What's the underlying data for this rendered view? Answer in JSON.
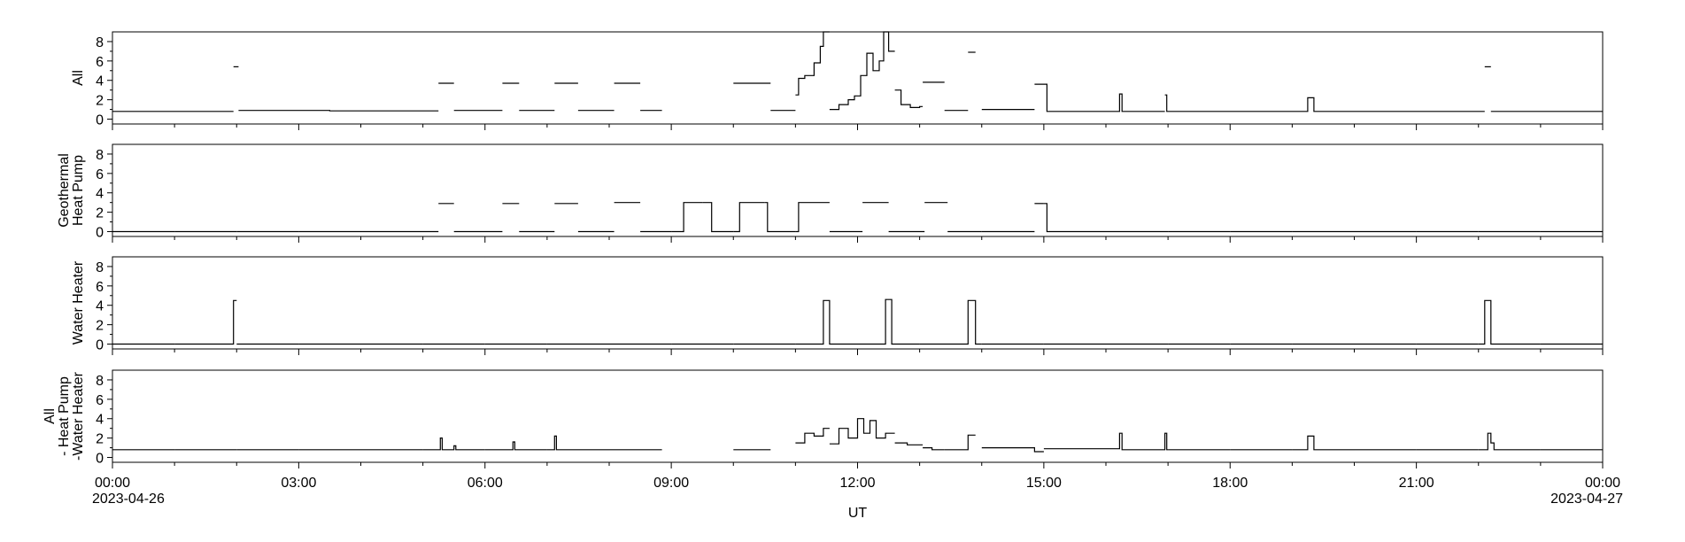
{
  "chart_data": {
    "type": "line",
    "xlabel": "UT",
    "x_start": "2023-04-26T00:00",
    "x_end": "2023-04-27T00:00",
    "x_ticks": [
      {
        "time": "00:00",
        "hour": 0,
        "date": "2023-04-26"
      },
      {
        "time": "03:00",
        "hour": 3,
        "date": ""
      },
      {
        "time": "06:00",
        "hour": 6,
        "date": ""
      },
      {
        "time": "09:00",
        "hour": 9,
        "date": ""
      },
      {
        "time": "12:00",
        "hour": 12,
        "date": ""
      },
      {
        "time": "15:00",
        "hour": 15,
        "date": ""
      },
      {
        "time": "18:00",
        "hour": 18,
        "date": ""
      },
      {
        "time": "21:00",
        "hour": 21,
        "date": ""
      },
      {
        "time": "00:00",
        "hour": 24,
        "date": "2023-04-27"
      }
    ],
    "ylim": [
      -0.5,
      9
    ],
    "y_ticks": [
      0,
      2,
      4,
      6,
      8
    ],
    "panels": [
      {
        "ylabel_lines": [
          "All"
        ],
        "baseline": 0.8,
        "segments": [
          [
            0,
            1.95
          ],
          [
            1.95,
            2.03
          ],
          [
            2.03,
            5.25
          ],
          [
            5.25,
            5.5
          ],
          [
            5.5,
            6.28
          ],
          [
            6.28,
            6.55
          ],
          [
            6.55,
            7.12
          ],
          [
            7.12,
            7.5
          ],
          [
            7.5,
            8.08
          ],
          [
            8.08,
            8.5
          ],
          [
            8.5,
            8.85
          ],
          [
            10.0,
            10.6
          ],
          [
            10.6,
            11.0
          ],
          [
            11.0,
            11.55
          ],
          [
            11.55,
            12.6
          ],
          [
            12.6,
            13.05
          ],
          [
            13.05,
            13.4
          ],
          [
            13.4,
            13.78
          ],
          [
            13.78,
            13.9
          ],
          [
            14.0,
            14.85
          ],
          [
            14.85,
            16.95
          ],
          [
            16.95,
            22.1
          ],
          [
            22.1,
            22.2
          ],
          [
            22.2,
            24
          ]
        ],
        "steps": [
          [
            0,
            0.8
          ],
          [
            1.95,
            5.4
          ],
          [
            2.03,
            0.9
          ],
          [
            3.5,
            0.85
          ],
          [
            5.25,
            3.7
          ],
          [
            5.5,
            0.9
          ],
          [
            6.28,
            3.7
          ],
          [
            6.55,
            0.9
          ],
          [
            7.12,
            3.7
          ],
          [
            7.5,
            0.9
          ],
          [
            8.08,
            3.7
          ],
          [
            8.5,
            0.9
          ],
          [
            10.0,
            3.7
          ],
          [
            10.6,
            0.9
          ],
          [
            11.0,
            2.5
          ],
          [
            11.05,
            4.2
          ],
          [
            11.15,
            4.5
          ],
          [
            11.3,
            5.8
          ],
          [
            11.4,
            7.5
          ],
          [
            11.45,
            9
          ],
          [
            11.55,
            1.0
          ],
          [
            11.7,
            1.5
          ],
          [
            11.85,
            2.0
          ],
          [
            11.95,
            2.4
          ],
          [
            12.05,
            4.5
          ],
          [
            12.15,
            6.8
          ],
          [
            12.25,
            5.0
          ],
          [
            12.35,
            6.0
          ],
          [
            12.42,
            9
          ],
          [
            12.5,
            7.0
          ],
          [
            12.6,
            3.0
          ],
          [
            12.7,
            1.5
          ],
          [
            12.85,
            1.2
          ],
          [
            13.0,
            1.3
          ],
          [
            13.05,
            3.8
          ],
          [
            13.4,
            0.9
          ],
          [
            13.78,
            6.9
          ],
          [
            14.0,
            1.0
          ],
          [
            14.85,
            3.6
          ],
          [
            15.05,
            0.8
          ],
          [
            16.22,
            2.6
          ],
          [
            16.26,
            0.8
          ],
          [
            16.95,
            2.5
          ],
          [
            16.98,
            0.8
          ],
          [
            19.25,
            2.2
          ],
          [
            19.35,
            0.8
          ],
          [
            22.1,
            5.4
          ],
          [
            22.2,
            0.8
          ]
        ]
      },
      {
        "ylabel_lines": [
          "Geothermal",
          "Heat Pump"
        ],
        "baseline": 0,
        "segments": [
          [
            0,
            1.0
          ],
          [
            1.0,
            2.0
          ],
          [
            2.0,
            3.0
          ],
          [
            3.0,
            4.0
          ],
          [
            4.0,
            5.25
          ],
          [
            5.25,
            5.5
          ],
          [
            5.5,
            6.28
          ],
          [
            6.28,
            6.55
          ],
          [
            6.55,
            7.12
          ],
          [
            7.12,
            7.5
          ],
          [
            7.5,
            8.08
          ],
          [
            8.08,
            8.5
          ],
          [
            8.5,
            9.0
          ],
          [
            9.0,
            9.5
          ],
          [
            9.5,
            10.0
          ],
          [
            10.0,
            10.5
          ],
          [
            10.5,
            11.0
          ],
          [
            11.0,
            11.55
          ],
          [
            11.55,
            12.08
          ],
          [
            12.08,
            12.5
          ],
          [
            12.5,
            13.08
          ],
          [
            13.08,
            13.45
          ],
          [
            13.45,
            14.0
          ],
          [
            14.0,
            14.85
          ],
          [
            14.85,
            15.0
          ],
          [
            15.0,
            16.0
          ],
          [
            16.0,
            17.0
          ],
          [
            17.0,
            18.0
          ],
          [
            18.0,
            19.0
          ],
          [
            19.0,
            20.0
          ],
          [
            20.0,
            21.0
          ],
          [
            21.0,
            22.0
          ],
          [
            22.0,
            23.0
          ],
          [
            23.0,
            24.0
          ]
        ],
        "steps": [
          [
            0,
            0
          ],
          [
            5.25,
            2.9
          ],
          [
            5.5,
            0
          ],
          [
            6.28,
            2.9
          ],
          [
            6.55,
            0
          ],
          [
            7.12,
            2.9
          ],
          [
            7.5,
            0
          ],
          [
            8.08,
            3.0
          ],
          [
            8.5,
            0
          ],
          [
            9.2,
            3.0
          ],
          [
            9.65,
            0
          ],
          [
            10.1,
            3.0
          ],
          [
            10.55,
            0
          ],
          [
            11.05,
            3.0
          ],
          [
            11.55,
            0
          ],
          [
            12.08,
            3.0
          ],
          [
            12.5,
            0
          ],
          [
            13.08,
            3.0
          ],
          [
            13.45,
            0
          ],
          [
            14.85,
            2.9
          ],
          [
            15.05,
            0
          ]
        ]
      },
      {
        "ylabel_lines": [
          "Water Heater"
        ],
        "baseline": 0,
        "segments": [
          [
            0,
            1.0
          ],
          [
            1.0,
            2.0
          ],
          [
            2.0,
            3.0
          ],
          [
            3.0,
            4.0
          ],
          [
            4.0,
            5.0
          ],
          [
            5.0,
            6.0
          ],
          [
            6.0,
            7.0
          ],
          [
            7.0,
            8.0
          ],
          [
            8.0,
            9.0
          ],
          [
            9.0,
            10.0
          ],
          [
            10.0,
            11.0
          ],
          [
            11.0,
            12.0
          ],
          [
            12.0,
            13.0
          ],
          [
            13.0,
            14.0
          ],
          [
            14.0,
            15.0
          ],
          [
            15.0,
            16.0
          ],
          [
            16.0,
            17.0
          ],
          [
            17.0,
            18.0
          ],
          [
            18.0,
            19.0
          ],
          [
            19.0,
            20.0
          ],
          [
            20.0,
            21.0
          ],
          [
            21.0,
            22.0
          ],
          [
            22.0,
            23.0
          ],
          [
            23.0,
            24.0
          ]
        ],
        "steps": [
          [
            0,
            0
          ],
          [
            1.95,
            4.5
          ],
          [
            2.0,
            0
          ],
          [
            11.45,
            4.5
          ],
          [
            11.55,
            0
          ],
          [
            12.45,
            4.6
          ],
          [
            12.55,
            0
          ],
          [
            13.78,
            4.5
          ],
          [
            13.9,
            0
          ],
          [
            22.1,
            4.5
          ],
          [
            22.2,
            0
          ]
        ]
      },
      {
        "ylabel_lines": [
          "All",
          "- Heat Pump",
          "-Water Heater"
        ],
        "baseline": 0.8,
        "segments": [
          [
            0,
            1.0
          ],
          [
            1.0,
            2.0
          ],
          [
            2.0,
            3.0
          ],
          [
            3.0,
            4.0
          ],
          [
            4.0,
            5.0
          ],
          [
            5.0,
            6.0
          ],
          [
            6.0,
            7.0
          ],
          [
            7.0,
            8.0
          ],
          [
            8.0,
            8.85
          ],
          [
            10.0,
            10.6
          ],
          [
            11.0,
            11.55
          ],
          [
            11.55,
            12.6
          ],
          [
            12.6,
            13.05
          ],
          [
            13.05,
            13.4
          ],
          [
            13.4,
            13.9
          ],
          [
            14.0,
            15.0
          ],
          [
            15.0,
            16.0
          ],
          [
            16.0,
            17.0
          ],
          [
            17.0,
            18.0
          ],
          [
            18.0,
            19.0
          ],
          [
            19.0,
            20.0
          ],
          [
            20.0,
            21.0
          ],
          [
            21.0,
            22.0
          ],
          [
            22.0,
            23.0
          ],
          [
            23.0,
            24.0
          ]
        ],
        "steps": [
          [
            0,
            0.8
          ],
          [
            5.28,
            2.0
          ],
          [
            5.31,
            0.8
          ],
          [
            5.5,
            1.2
          ],
          [
            5.53,
            0.8
          ],
          [
            6.45,
            1.6
          ],
          [
            6.48,
            0.8
          ],
          [
            7.12,
            2.2
          ],
          [
            7.15,
            0.8
          ],
          [
            10.6,
            0.5
          ],
          [
            11.0,
            1.5
          ],
          [
            11.15,
            2.5
          ],
          [
            11.3,
            2.2
          ],
          [
            11.45,
            3.0
          ],
          [
            11.55,
            1.4
          ],
          [
            11.7,
            3.0
          ],
          [
            11.85,
            2.0
          ],
          [
            12.0,
            4.0
          ],
          [
            12.1,
            2.5
          ],
          [
            12.2,
            3.8
          ],
          [
            12.3,
            2.0
          ],
          [
            12.45,
            2.5
          ],
          [
            12.6,
            1.5
          ],
          [
            12.8,
            1.3
          ],
          [
            13.05,
            1.0
          ],
          [
            13.2,
            0.8
          ],
          [
            13.4,
            0.8
          ],
          [
            13.78,
            2.3
          ],
          [
            14.0,
            1.0
          ],
          [
            14.85,
            0.6
          ],
          [
            15.0,
            0.9
          ],
          [
            16.22,
            2.5
          ],
          [
            16.26,
            0.8
          ],
          [
            16.95,
            2.5
          ],
          [
            16.98,
            0.8
          ],
          [
            19.25,
            2.2
          ],
          [
            19.35,
            0.8
          ],
          [
            22.15,
            2.5
          ],
          [
            22.2,
            1.5
          ],
          [
            22.25,
            0.8
          ]
        ]
      }
    ]
  }
}
